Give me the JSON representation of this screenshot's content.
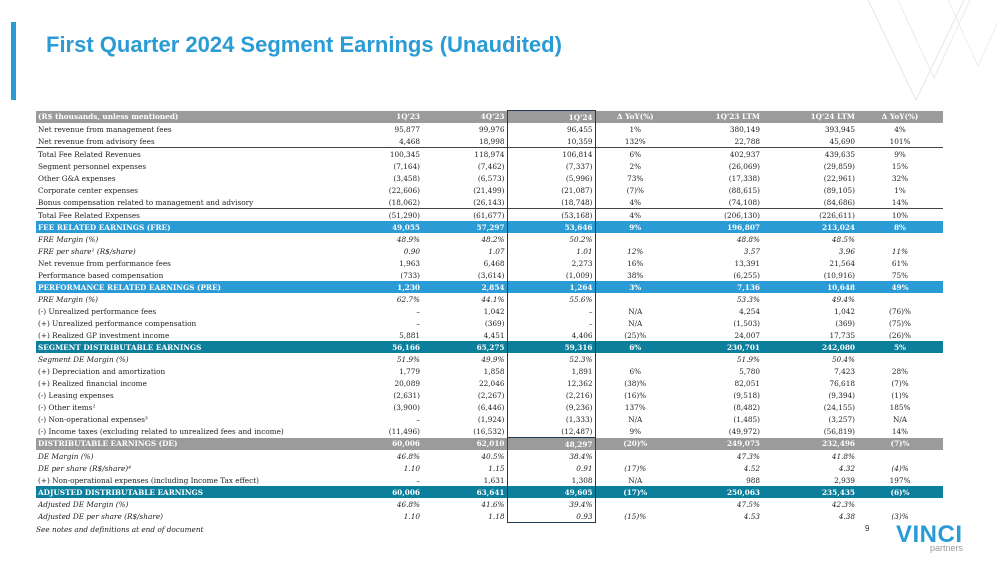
{
  "title": "First Quarter 2024 Segment Earnings (Unaudited)",
  "table": {
    "header": [
      "(R$ thousands, unless mentioned)",
      "1Q'23",
      "4Q'23",
      "1Q'24",
      "Δ YoY(%)",
      "1Q'23 LTM",
      "1Q'24 LTM",
      "Δ YoY(%)"
    ],
    "rows": [
      {
        "style": "plain",
        "cells": [
          "Net revenue from management fees",
          "95,877",
          "99,976",
          "96,455",
          "1%",
          "380,149",
          "393,945",
          "4%"
        ]
      },
      {
        "style": "plain",
        "cells": [
          "Net revenue from advisory fees",
          "4,468",
          "18,998",
          "10,359",
          "132%",
          "22,788",
          "45,690",
          "101%"
        ]
      },
      {
        "style": "topline",
        "cells": [
          "Total Fee Related Revenues",
          "100,345",
          "118,974",
          "106,814",
          "6%",
          "402,937",
          "439,635",
          "9%"
        ]
      },
      {
        "style": "plain",
        "cells": [
          "Segment personnel expenses",
          "(7,164)",
          "(7,462)",
          "(7,337)",
          "2%",
          "(26,069)",
          "(29,859)",
          "15%"
        ]
      },
      {
        "style": "plain",
        "cells": [
          "Other G&A expenses",
          "(3,458)",
          "(6,573)",
          "(5,996)",
          "73%",
          "(17,338)",
          "(22,961)",
          "32%"
        ]
      },
      {
        "style": "plain",
        "cells": [
          "Corporate center expenses",
          "(22,606)",
          "(21,499)",
          "(21,087)",
          "(7)%",
          "(88,615)",
          "(89,105)",
          "1%"
        ]
      },
      {
        "style": "plain",
        "cells": [
          "Bonus compensation related to management and advisory",
          "(18,062)",
          "(26,143)",
          "(18,748)",
          "4%",
          "(74,108)",
          "(84,686)",
          "14%"
        ]
      },
      {
        "style": "topline",
        "cells": [
          "Total Fee Related Expenses",
          "(51,290)",
          "(61,677)",
          "(53,168)",
          "4%",
          "(206,130)",
          "(226,611)",
          "10%"
        ]
      },
      {
        "style": "blue",
        "cells": [
          "FEE RELATED EARNINGS (FRE)",
          "49,055",
          "57,297",
          "53,646",
          "9%",
          "196,807",
          "213,024",
          "8%"
        ]
      },
      {
        "style": "ital",
        "cells": [
          "FRE Margin (%)",
          "48.9%",
          "48.2%",
          "50.2%",
          "",
          "48.8%",
          "48.5%",
          ""
        ]
      },
      {
        "style": "ital",
        "cells": [
          "FRE per share¹ (R$/share)",
          "0.90",
          "1.07",
          "1.01",
          "12%",
          "3.57",
          "3.96",
          "11%"
        ]
      },
      {
        "style": "plain",
        "cells": [
          "Net revenue from performance fees",
          "1,963",
          "6,468",
          "2,273",
          "16%",
          "13,391",
          "21,564",
          "61%"
        ]
      },
      {
        "style": "plain",
        "cells": [
          "Performance based compensation",
          "(733)",
          "(3,614)",
          "(1,009)",
          "38%",
          "(6,255)",
          "(10,916)",
          "75%"
        ]
      },
      {
        "style": "blue",
        "cells": [
          "PERFORMANCE RELATED EARNINGS (PRE)",
          "1,230",
          "2,854",
          "1,264",
          "3%",
          "7,136",
          "10,648",
          "49%"
        ]
      },
      {
        "style": "ital",
        "cells": [
          "PRE Margin (%)",
          "62.7%",
          "44.1%",
          "55.6%",
          "",
          "53.3%",
          "49.4%",
          ""
        ]
      },
      {
        "style": "plain",
        "cells": [
          "(-) Unrealized performance fees",
          "–",
          "1,042",
          "–",
          "N/A",
          "4,254",
          "1,042",
          "(76)%"
        ]
      },
      {
        "style": "plain",
        "cells": [
          "(+) Unrealized performance compensation",
          "–",
          "(369)",
          "–",
          "N/A",
          "(1,503)",
          "(369)",
          "(75)%"
        ]
      },
      {
        "style": "plain",
        "cells": [
          "(+) Realized GP investment income",
          "5,881",
          "4,451",
          "4,406",
          "(25)%",
          "24,007",
          "17,735",
          "(26)%"
        ]
      },
      {
        "style": "teal",
        "cells": [
          "SEGMENT DISTRIBUTABLE EARNINGS",
          "56,166",
          "65,275",
          "59,316",
          "6%",
          "230,701",
          "242,080",
          "5%"
        ]
      },
      {
        "style": "ital",
        "cells": [
          "Segment DE Margin (%)",
          "51.9%",
          "49.9%",
          "52.3%",
          "",
          "51.9%",
          "50.4%",
          ""
        ]
      },
      {
        "style": "plain",
        "cells": [
          "(+) Depreciation and amortization",
          "1,779",
          "1,858",
          "1,891",
          "6%",
          "5,780",
          "7,423",
          "28%"
        ]
      },
      {
        "style": "plain",
        "cells": [
          "(+) Realized financial income",
          "20,089",
          "22,046",
          "12,362",
          "(38)%",
          "82,051",
          "76,618",
          "(7)%"
        ]
      },
      {
        "style": "plain",
        "cells": [
          "(-) Leasing expenses",
          "(2,631)",
          "(2,267)",
          "(2,216)",
          "(16)%",
          "(9,518)",
          "(9,394)",
          "(1)%"
        ]
      },
      {
        "style": "plain",
        "cells": [
          "(-) Other items²",
          "(3,900)",
          "(6,446)",
          "(9,236)",
          "137%",
          "(8,482)",
          "(24,155)",
          "185%"
        ]
      },
      {
        "style": "plain",
        "cells": [
          "(-) Non-operational expenses³",
          "–",
          "(1,924)",
          "(1,333)",
          "N/A",
          "(1,485)",
          "(3,257)",
          "N/A"
        ]
      },
      {
        "style": "plain",
        "cells": [
          "(-) Income taxes (excluding related to unrealized fees and income)",
          "(11,496)",
          "(16,532)",
          "(12,487)",
          "9%",
          "(49,972)",
          "(56,819)",
          "14%"
        ]
      },
      {
        "style": "head",
        "cells": [
          "DISTRIBUTABLE EARNINGS (DE)",
          "60,006",
          "62,010",
          "48,297",
          "(20)%",
          "249,075",
          "232,496",
          "(7)%"
        ]
      },
      {
        "style": "ital",
        "cells": [
          "DE Margin (%)",
          "46.8%",
          "40.5%",
          "38.4%",
          "",
          "47.3%",
          "41.8%",
          ""
        ]
      },
      {
        "style": "ital",
        "cells": [
          "DE per share (R$/share)⁴",
          "1.10",
          "1.15",
          "0.91",
          "(17)%",
          "4.52",
          "4.32",
          "(4)%"
        ]
      },
      {
        "style": "plain",
        "cells": [
          "(+) Non-operational expenses (including Income Tax effect)",
          "–",
          "1,631",
          "1,308",
          "N/A",
          "988",
          "2,939",
          "197%"
        ]
      },
      {
        "style": "teal",
        "cells": [
          "ADJUSTED DISTRIBUTABLE EARNINGS",
          "60,006",
          "63,641",
          "49,605",
          "(17)%",
          "250,063",
          "235,435",
          "(6)%"
        ]
      },
      {
        "style": "ital",
        "cells": [
          "Adjusted DE Margin (%)",
          "46.8%",
          "41.6%",
          "39.4%",
          "",
          "47.5%",
          "42.3%",
          ""
        ]
      },
      {
        "style": "ital",
        "cells": [
          "Adjusted DE per share (R$/share)",
          "1.10",
          "1.18",
          "0.93",
          "(15)%",
          "4.53",
          "4.38",
          "(3)%"
        ]
      }
    ]
  },
  "footnote": "See notes and definitions at end of document",
  "page_number": "9",
  "logo": {
    "name": "VINCI",
    "sub": "partners"
  },
  "colors": {
    "accent": "#2b9bd6",
    "teal": "#0b7f9c",
    "header_gray": "#9b9b9b"
  }
}
